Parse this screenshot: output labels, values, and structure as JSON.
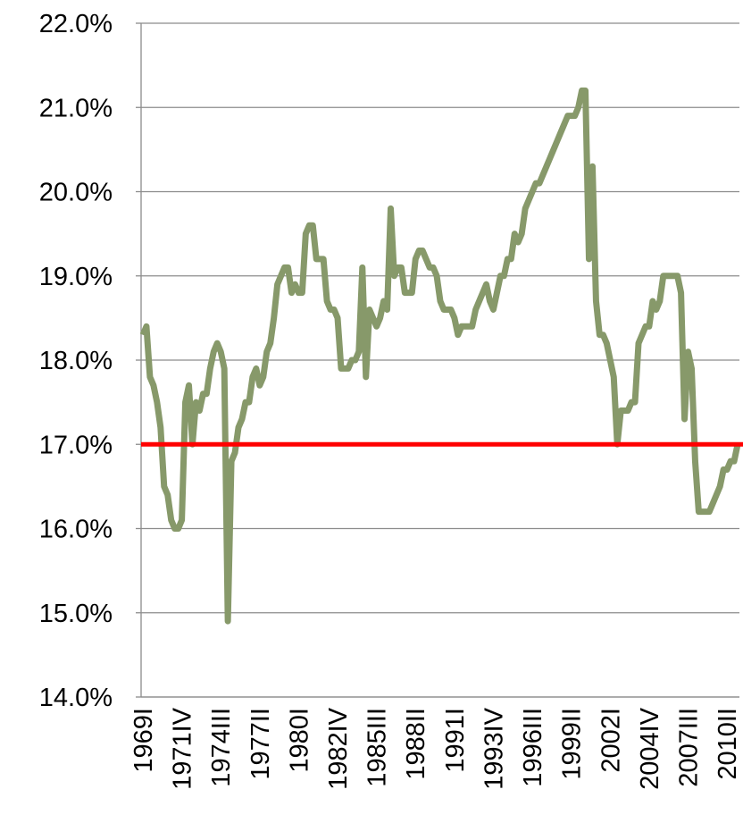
{
  "chart_data": {
    "type": "line",
    "categories": [
      "1969I",
      null,
      null,
      null,
      null,
      null,
      null,
      null,
      null,
      null,
      null,
      "1971IV",
      null,
      null,
      null,
      null,
      null,
      null,
      null,
      null,
      null,
      null,
      "1974III",
      null,
      null,
      null,
      null,
      null,
      null,
      null,
      null,
      null,
      null,
      "1977II",
      null,
      null,
      null,
      null,
      null,
      null,
      null,
      null,
      null,
      null,
      "1980I",
      null,
      null,
      null,
      null,
      null,
      null,
      null,
      null,
      null,
      null,
      "1982IV",
      null,
      null,
      null,
      null,
      null,
      null,
      null,
      null,
      null,
      null,
      "1985III",
      null,
      null,
      null,
      null,
      null,
      null,
      null,
      null,
      null,
      null,
      "1988II",
      null,
      null,
      null,
      null,
      null,
      null,
      null,
      null,
      null,
      null,
      "1991I",
      null,
      null,
      null,
      null,
      null,
      null,
      null,
      null,
      null,
      null,
      "1993IV",
      null,
      null,
      null,
      null,
      null,
      null,
      null,
      null,
      null,
      null,
      "1996III",
      null,
      null,
      null,
      null,
      null,
      null,
      null,
      null,
      null,
      null,
      "1999II",
      null,
      null,
      null,
      null,
      null,
      null,
      null,
      null,
      null,
      null,
      "2002I",
      null,
      null,
      null,
      null,
      null,
      null,
      null,
      null,
      null,
      null,
      "2004IV",
      null,
      null,
      null,
      null,
      null,
      null,
      null,
      null,
      null,
      null,
      "2007III",
      null,
      null,
      null,
      null,
      null,
      null,
      null,
      null,
      null,
      null,
      "2010II",
      null,
      null,
      null
    ],
    "values": [
      18.3,
      18.4,
      17.8,
      17.7,
      17.5,
      17.2,
      16.5,
      16.4,
      16.1,
      16.0,
      16.0,
      16.1,
      17.5,
      17.7,
      17.0,
      17.5,
      17.4,
      17.6,
      17.6,
      17.9,
      18.1,
      18.2,
      18.1,
      17.9,
      14.9,
      16.8,
      16.9,
      17.2,
      17.3,
      17.5,
      17.5,
      17.8,
      17.9,
      17.7,
      17.8,
      18.1,
      18.2,
      18.5,
      18.9,
      19.0,
      19.1,
      19.1,
      18.8,
      18.9,
      18.8,
      18.8,
      19.5,
      19.6,
      19.6,
      19.2,
      19.2,
      19.2,
      18.7,
      18.6,
      18.6,
      18.5,
      17.9,
      17.9,
      17.9,
      18.0,
      18.0,
      18.1,
      19.1,
      17.8,
      18.6,
      18.5,
      18.4,
      18.5,
      18.7,
      18.6,
      19.8,
      19.0,
      19.1,
      19.1,
      18.8,
      18.8,
      18.8,
      19.2,
      19.3,
      19.3,
      19.2,
      19.1,
      19.1,
      19.0,
      18.7,
      18.6,
      18.6,
      18.6,
      18.5,
      18.3,
      18.4,
      18.4,
      18.4,
      18.4,
      18.6,
      18.7,
      18.8,
      18.9,
      18.7,
      18.6,
      18.8,
      19.0,
      19.0,
      19.2,
      19.2,
      19.5,
      19.4,
      19.5,
      19.8,
      19.9,
      20.0,
      20.1,
      20.1,
      20.2,
      20.3,
      20.4,
      20.5,
      20.6,
      20.7,
      20.8,
      20.9,
      20.9,
      20.9,
      21.0,
      21.2,
      21.2,
      19.2,
      20.3,
      18.7,
      18.3,
      18.3,
      18.2,
      18.0,
      17.8,
      17.0,
      17.4,
      17.4,
      17.4,
      17.5,
      17.5,
      18.2,
      18.3,
      18.4,
      18.4,
      18.7,
      18.6,
      18.7,
      19.0,
      19.0,
      19.0,
      19.0,
      19.0,
      18.8,
      17.3,
      18.1,
      17.9,
      16.8,
      16.2,
      16.2,
      16.2,
      16.2,
      16.3,
      16.4,
      16.5,
      16.7,
      16.7,
      16.8,
      16.8,
      17.0
    ],
    "color": "#87996a",
    "reference_line": {
      "value": 17,
      "color": "#ff0000"
    },
    "ylim": [
      14,
      22
    ],
    "yticks": [
      {
        "value": 14,
        "label": "14.0%"
      },
      {
        "value": 15,
        "label": "15.0%"
      },
      {
        "value": 16,
        "label": "16.0%"
      },
      {
        "value": 17,
        "label": "17.0%"
      },
      {
        "value": 18,
        "label": "18.0%"
      },
      {
        "value": 19,
        "label": "19.0%"
      },
      {
        "value": 20,
        "label": "20.0%"
      },
      {
        "value": 21,
        "label": "21.0%"
      },
      {
        "value": 22,
        "label": "22.0%"
      }
    ],
    "grid": true
  }
}
